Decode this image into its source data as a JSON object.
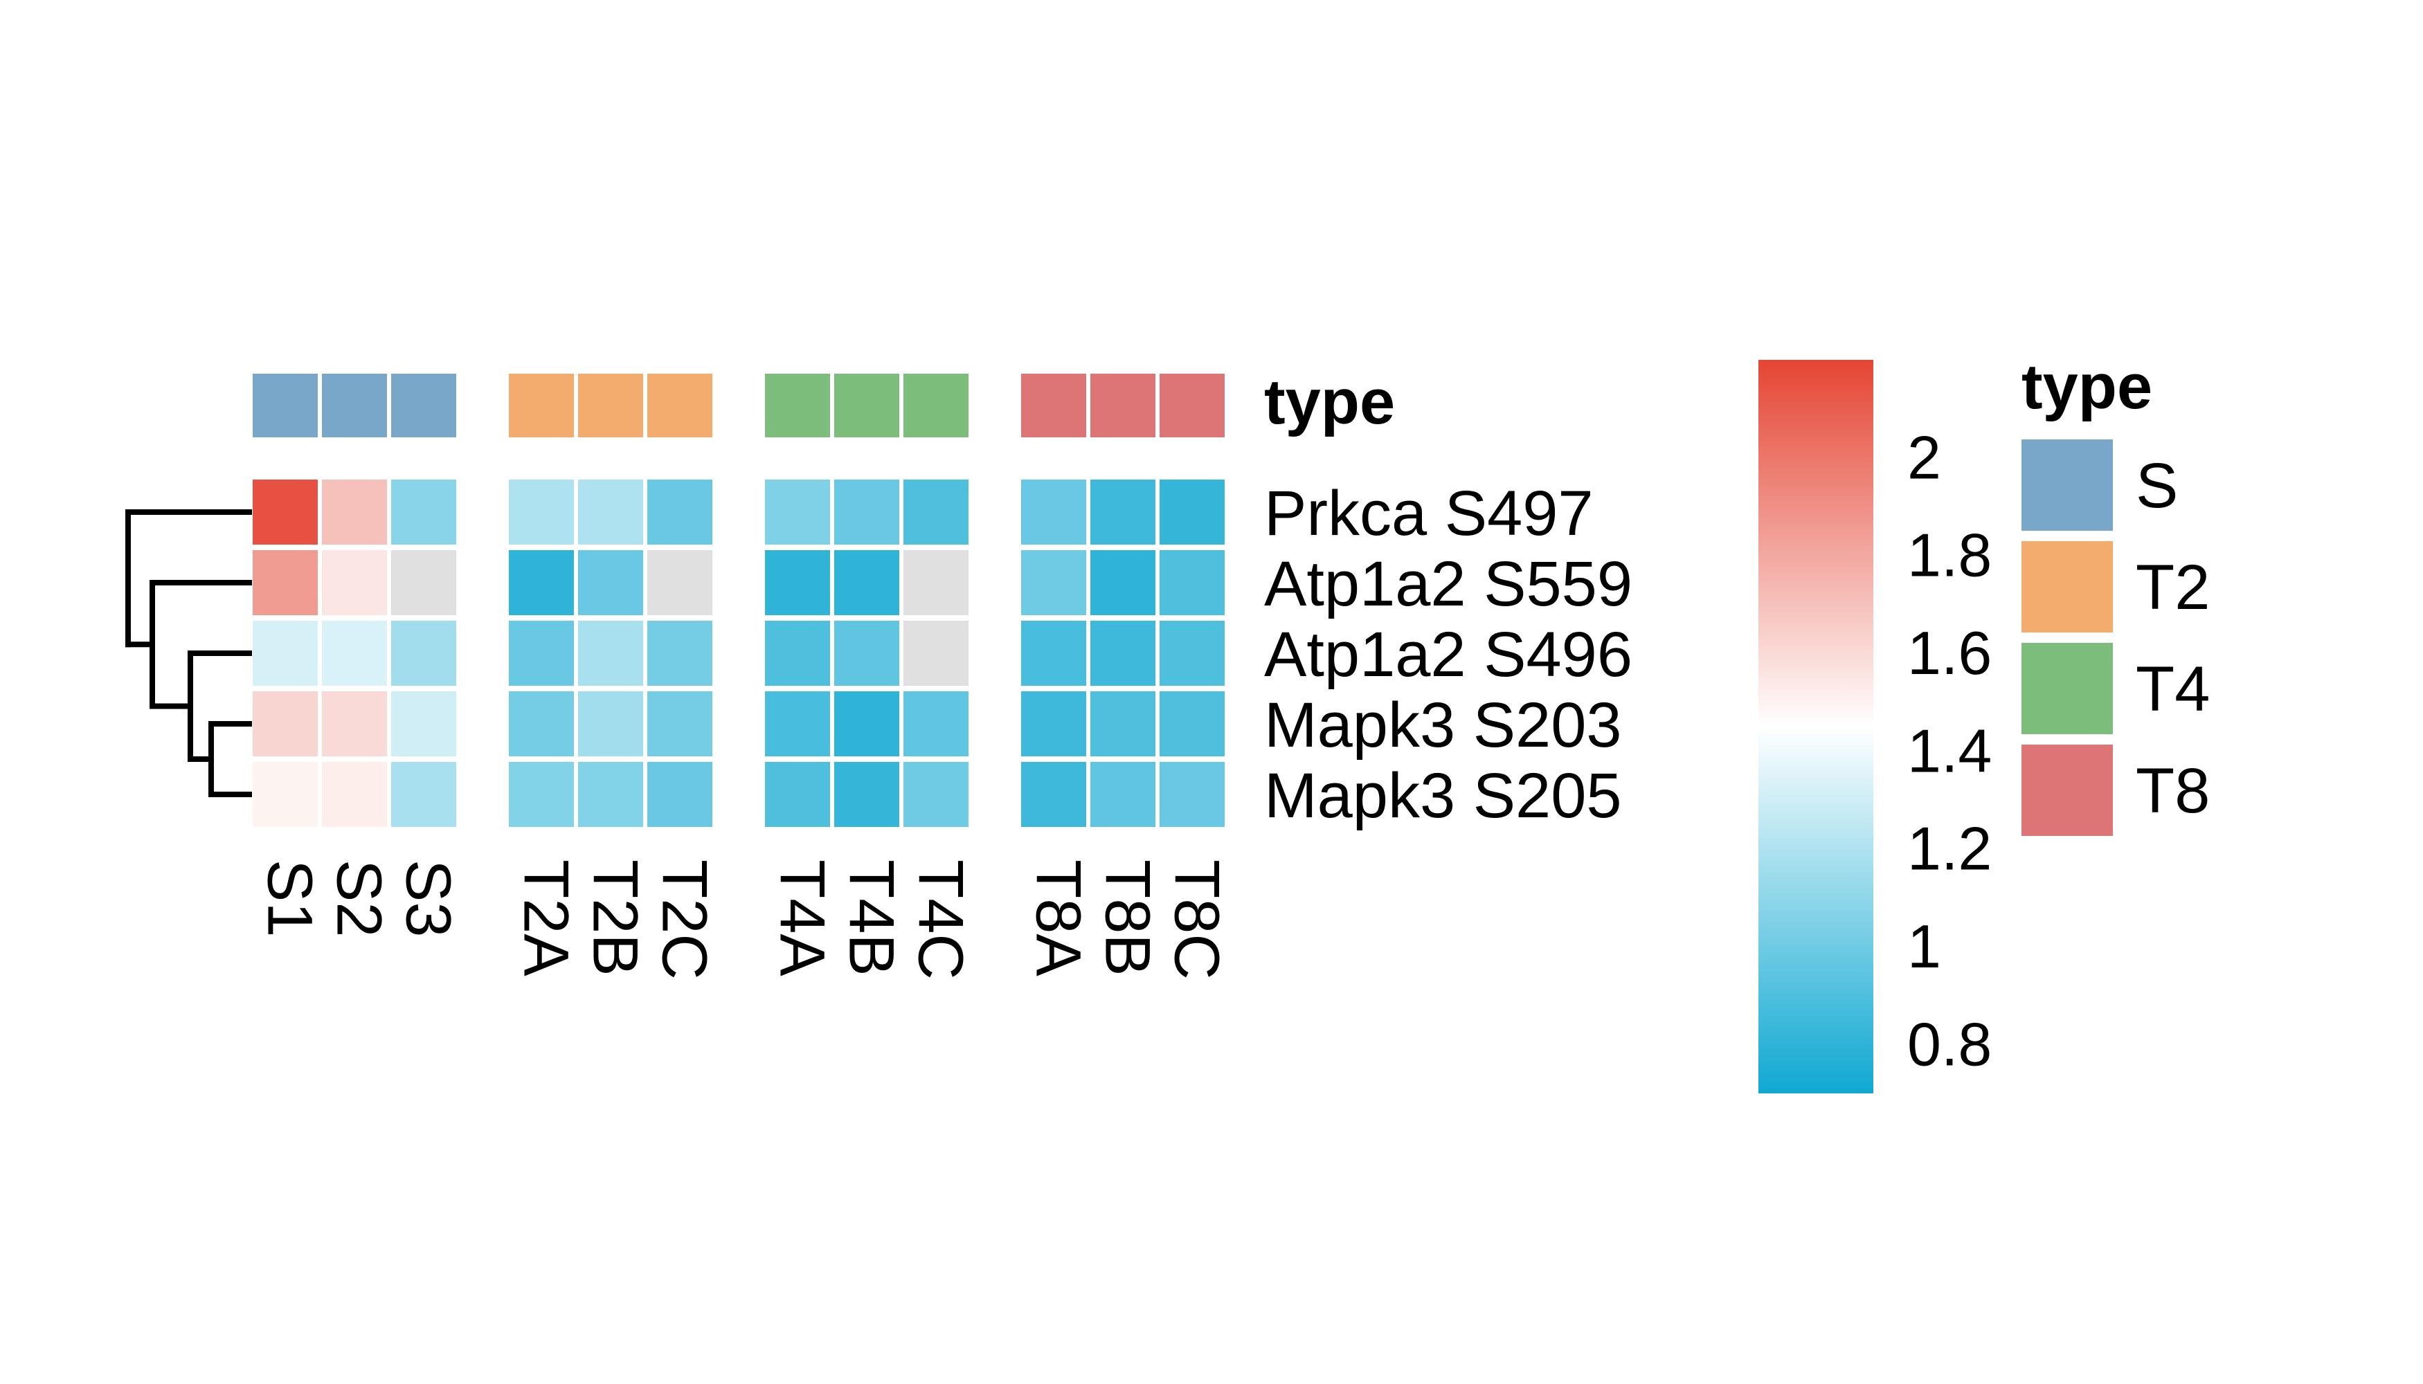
{
  "chart_data": {
    "type": "heatmap",
    "rows": [
      "Prkca S497",
      "Atp1a2 S559",
      "Atp1a2 S496",
      "Mapk3 S203",
      "Mapk3 S205"
    ],
    "columns": [
      "S1",
      "S2",
      "S3",
      "T2A",
      "T2B",
      "T2C",
      "T4A",
      "T4B",
      "T4C",
      "T8A",
      "T8B",
      "T8C"
    ],
    "values": [
      [
        2.15,
        1.7,
        1.08,
        1.2,
        1.2,
        0.98,
        1.05,
        0.98,
        0.9,
        0.98,
        0.85,
        0.82
      ],
      [
        1.85,
        1.55,
        null,
        0.8,
        0.98,
        null,
        0.8,
        0.8,
        null,
        1.0,
        0.8,
        0.9
      ],
      [
        1.32,
        1.33,
        1.16,
        0.98,
        1.18,
        1.02,
        0.9,
        0.95,
        null,
        0.88,
        0.85,
        0.9
      ],
      [
        1.62,
        1.6,
        1.3,
        1.02,
        1.16,
        1.02,
        0.88,
        0.8,
        0.95,
        0.85,
        0.9,
        0.9
      ],
      [
        1.5,
        1.52,
        1.18,
        1.06,
        1.06,
        0.98,
        0.9,
        0.82,
        1.0,
        0.85,
        0.95,
        0.98
      ]
    ],
    "na_color": "#e0e0e0",
    "column_annotation": {
      "title": "type",
      "values": [
        "S",
        "S",
        "S",
        "T2",
        "T2",
        "T2",
        "T4",
        "T4",
        "T4",
        "T8",
        "T8",
        "T8"
      ]
    },
    "column_split": [
      3,
      3,
      3,
      3
    ],
    "row_dendrogram": true,
    "color_scale": {
      "min": 0.7,
      "max": 2.2,
      "stops": [
        {
          "value": 0.7,
          "color": "#0fa8d2"
        },
        {
          "value": 1.45,
          "color": "#ffffff"
        },
        {
          "value": 2.2,
          "color": "#e54534"
        }
      ],
      "ticks": [
        "2",
        "1.8",
        "1.6",
        "1.4",
        "1.2",
        "1",
        "0.8"
      ],
      "tick_values": [
        2.0,
        1.8,
        1.6,
        1.4,
        1.2,
        1.0,
        0.8
      ]
    },
    "legend": {
      "title": "type",
      "items": [
        {
          "label": "S",
          "color": "#79a7c9"
        },
        {
          "label": "T2",
          "color": "#f3ab6e"
        },
        {
          "label": "T4",
          "color": "#7dbd7c"
        },
        {
          "label": "T8",
          "color": "#dd7576"
        }
      ]
    }
  }
}
